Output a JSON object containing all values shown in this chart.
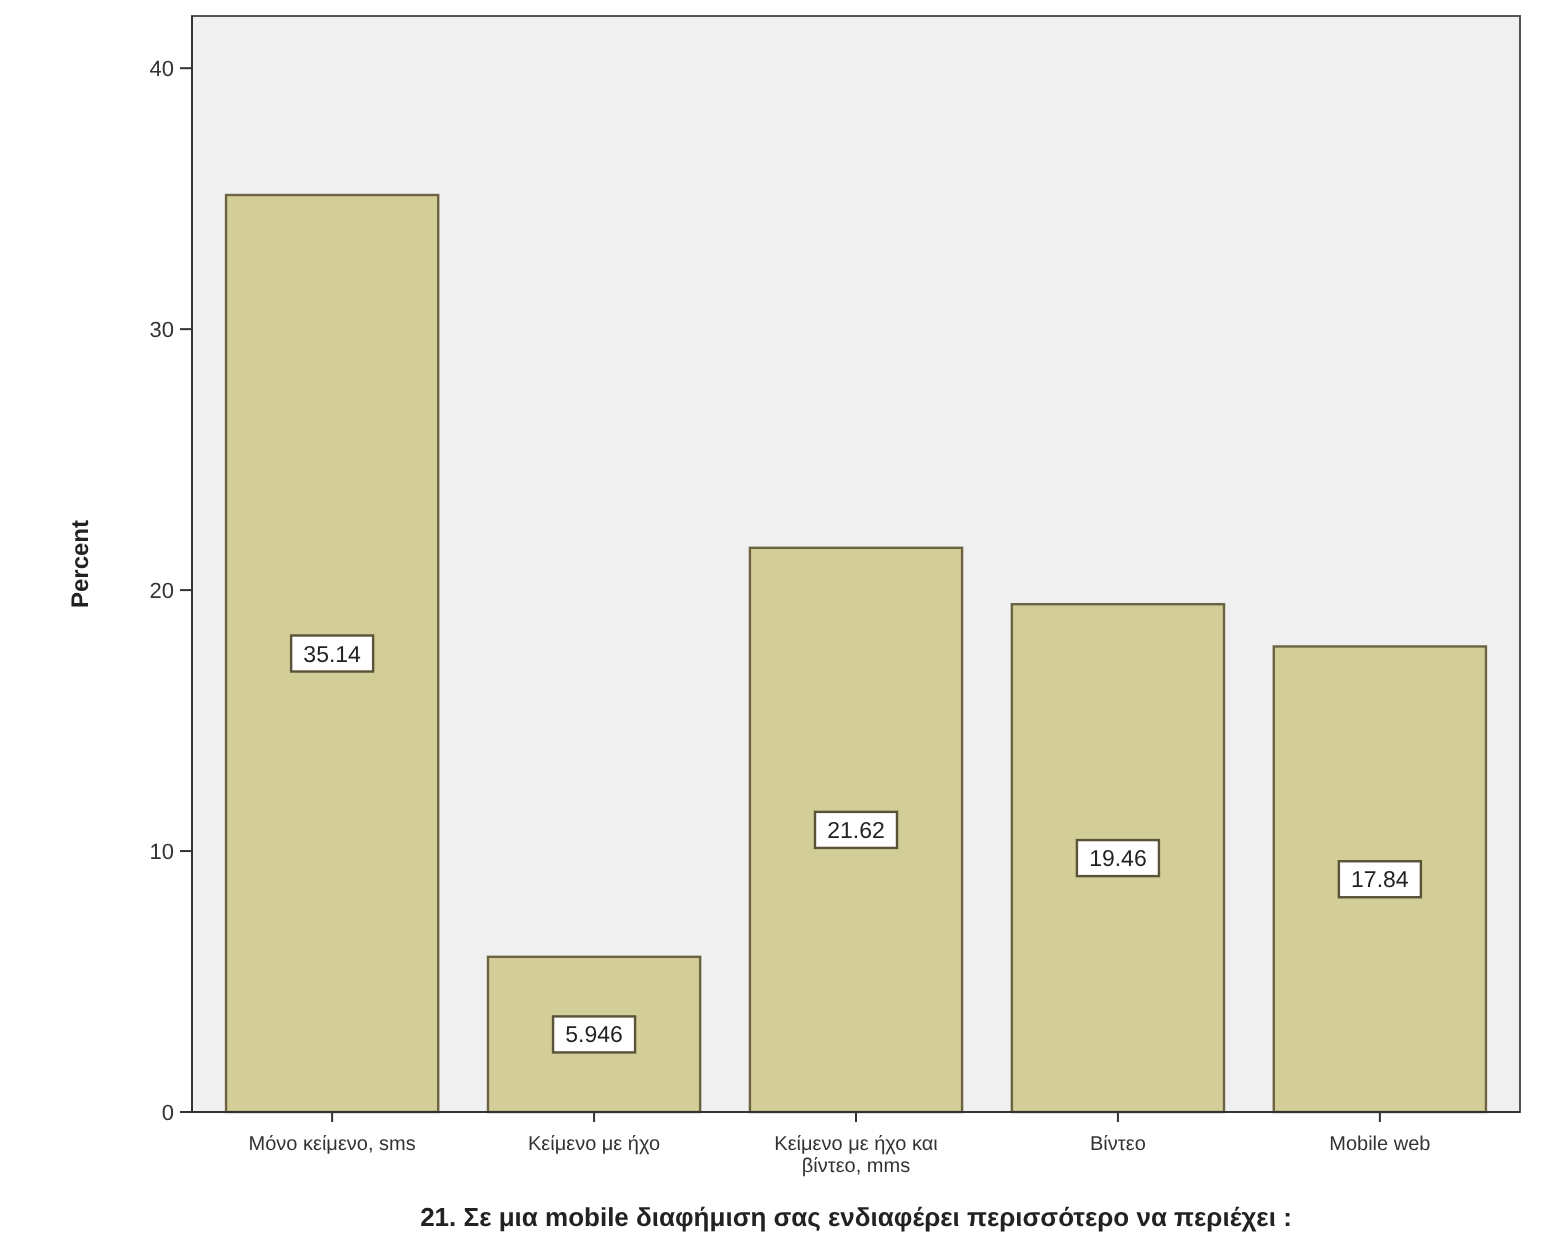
{
  "chart_data": {
    "type": "bar",
    "xlabel": "21.  Σε μια mobile διαφήμιση σας ενδιαφέρει περισσότερο να περιέχει :",
    "ylabel": "Percent",
    "categories": [
      "Μόνο κείμενο, sms",
      "Κείμενο με ήχο",
      "Κείμενο με ήχο και βίντεο, mms",
      "Βίντεο",
      "Mobile web"
    ],
    "values": [
      35.14,
      5.946,
      21.62,
      19.46,
      17.84
    ],
    "color": "#d3cd97",
    "ylim": [
      0,
      42
    ],
    "yticks": [
      0,
      10,
      20,
      30,
      40
    ],
    "data_labels": true,
    "grid": false
  }
}
